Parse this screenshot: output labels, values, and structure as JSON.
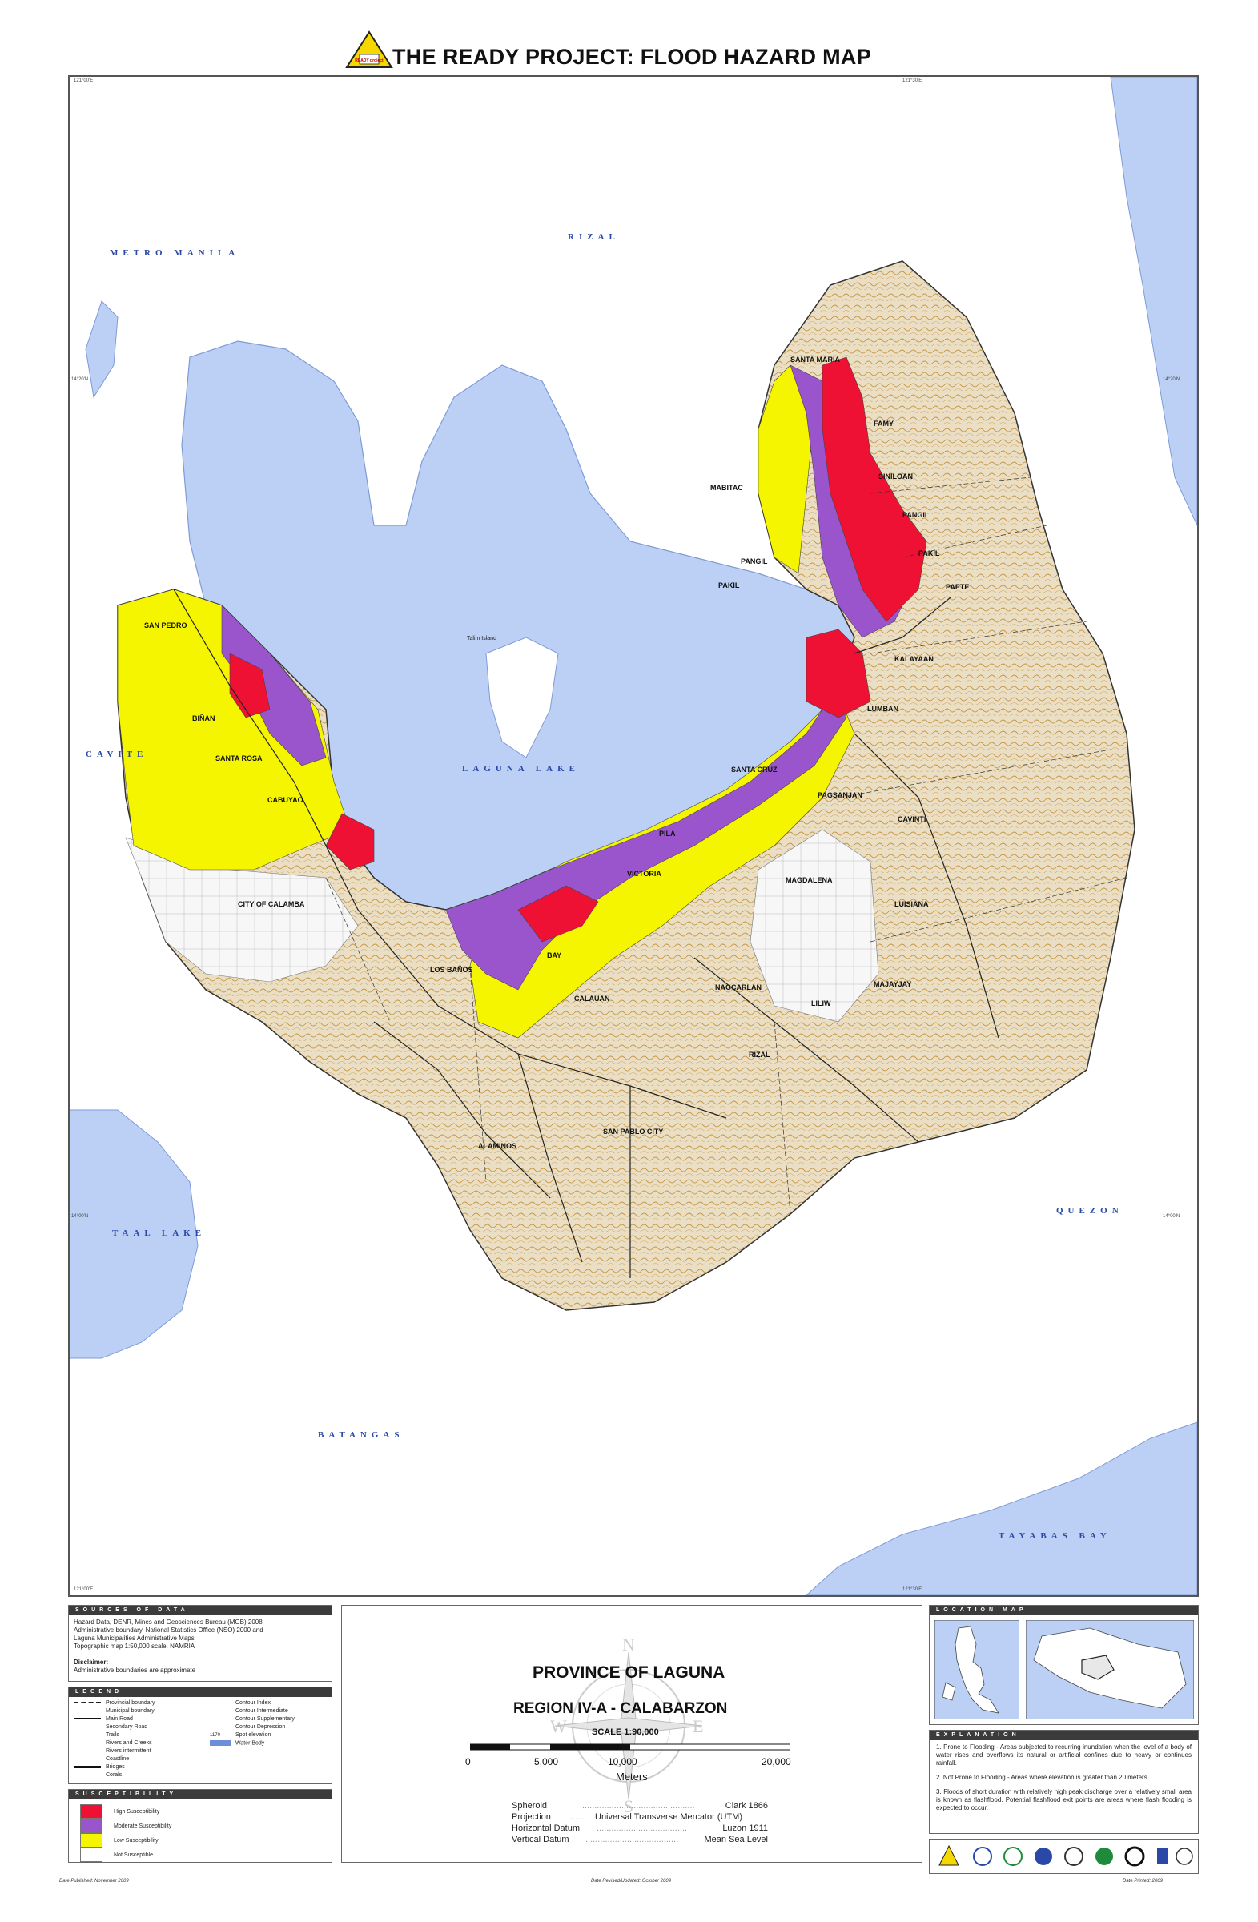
{
  "header": {
    "title": "THE READY PROJECT: FLOOD HAZARD MAP",
    "logo_text": "READY project",
    "logo_color": "#f5d800"
  },
  "map": {
    "colors": {
      "water": "#bcd0f5",
      "land": "#e9dcc0",
      "contour": "#c99a4a",
      "high": "#ee1133",
      "moderate": "#9a55cc",
      "low": "#f5f500",
      "none": "#f7f7f7"
    },
    "coords": {
      "top_left": "121°00'E",
      "top_right": "121°30'E",
      "left_mid": "14°20'N",
      "right_mid": "14°20'N",
      "left_low": "14°00'N",
      "right_low": "14°00'N",
      "bottom_right": "121°30'E",
      "bottom_left": "121°00'E"
    },
    "region_labels": {
      "metro_manila": "METRO MANILA",
      "rizal": "RIZAL",
      "cavite": "CAVITE",
      "laguna_lake": "LAGUNA LAKE",
      "taal_lake": "TAAL LAKE",
      "quezon": "QUEZON",
      "batangas": "BATANGAS",
      "tayabas_bay": "TAYABAS BAY",
      "talim_island": "Talim Island"
    },
    "municipalities": {
      "santa_maria": "SANTA MARIA",
      "famy": "FAMY",
      "siniloan": "SINILOAN",
      "mabitac": "MABITAC",
      "pangil_e": "PANGIL",
      "pakil_e": "PAKIL",
      "pangil_w": "PANGIL",
      "pakil_w": "PAKIL",
      "paete": "PAETE",
      "kalayaan": "KALAYAAN",
      "lumban": "LUMBAN",
      "santa_cruz": "SANTA CRUZ",
      "pagsanjan": "PAGSANJAN",
      "cavinti": "CAVINTI",
      "pila": "PILA",
      "victoria": "VICTORIA",
      "magdalena": "MAGDALENA",
      "luisiana": "LUISIANA",
      "san_pedro": "SAN PEDRO",
      "binan": "BIÑAN",
      "santa_rosa": "SANTA ROSA",
      "cabuyao": "CABUYAO",
      "calamba": "CITY OF CALAMBA",
      "los_banos": "LOS BAÑOS",
      "bay": "BAY",
      "calauan": "CALAUAN",
      "nagcarlan": "NAGCARLAN",
      "majayjay": "MAJAYJAY",
      "liliw": "LILIW",
      "rizal_muni": "RIZAL",
      "san_pablo": "SAN PABLO CITY",
      "alaminos": "ALAMINOS"
    }
  },
  "sources": {
    "header": "SOURCES OF DATA",
    "lines": [
      "Hazard Data, DENR, Mines and Geosciences Bureau (MGB) 2008",
      "Administrative boundary, National Statistics Office (NSO) 2000 and",
      "Laguna Municipalities Administrative Maps",
      "Topographic map 1:50,000 scale, NAMRIA"
    ],
    "disclaimer_title": "Disclaimer:",
    "disclaimer_text": "Administrative boundaries are approximate"
  },
  "legend": {
    "header": "LEGEND",
    "left": [
      "Provincial boundary",
      "Municipal boundary",
      "Main Road",
      "Secondary Road",
      "Trails",
      "Rivers and Creeks",
      "Rivers intermittent",
      "Coastline",
      "Bridges",
      "Corals"
    ],
    "right": [
      "Contour Index",
      "Contour Intermediate",
      "Contour Supplementary",
      "Contour Depression",
      "Spot elevation",
      "Water Body"
    ],
    "spot_value": "1170"
  },
  "susceptibility": {
    "header": "SUSCEPTIBILITY",
    "items": [
      {
        "label": "High Susceptibility",
        "color": "#ee1133"
      },
      {
        "label": "Moderate Susceptibility",
        "color": "#9a55cc"
      },
      {
        "label": "Low Susceptibility",
        "color": "#f5f500"
      },
      {
        "label": "Not Susceptible",
        "color": "#ffffff"
      }
    ]
  },
  "center": {
    "province": "PROVINCE OF LAGUNA",
    "region": "REGION IV-A - CALABARZON",
    "scale": "SCALE  1:90,000",
    "ticks": [
      "0",
      "5,000",
      "10,000",
      "20,000"
    ],
    "unit": "Meters",
    "compass": {
      "n": "N",
      "s": "S",
      "e": "E",
      "w": "W"
    },
    "datum": [
      {
        "label": "Spheroid",
        "value": "Clark 1866"
      },
      {
        "label": "Projection",
        "value": "Universal Transverse Mercator (UTM)"
      },
      {
        "label": "Horizontal Datum",
        "value": "Luzon 1911"
      },
      {
        "label": "Vertical Datum",
        "value": "Mean Sea Level"
      }
    ]
  },
  "location_map": {
    "header": "LOCATION MAP"
  },
  "explanation": {
    "header": "EXPLANATION",
    "items": [
      "1. Prone to Flooding - Areas subjected to recurring inundation when the level of a body of water rises and overflows its natural or artificial confines due to heavy or continues rainfall.",
      "2. Not Prone to Flooding - Areas where elevation is greater than 20 meters.",
      "3. Floods of short duration with relatively high peak discharge over a relatively small area is known as flashflood. Potential flashflood exit points are areas where flash flooding is expected to occur."
    ]
  },
  "footer": {
    "left": "Date Published: November 2009",
    "center": "Date Revised/Updated: October 2009",
    "right": "Date Printed: 2009"
  }
}
